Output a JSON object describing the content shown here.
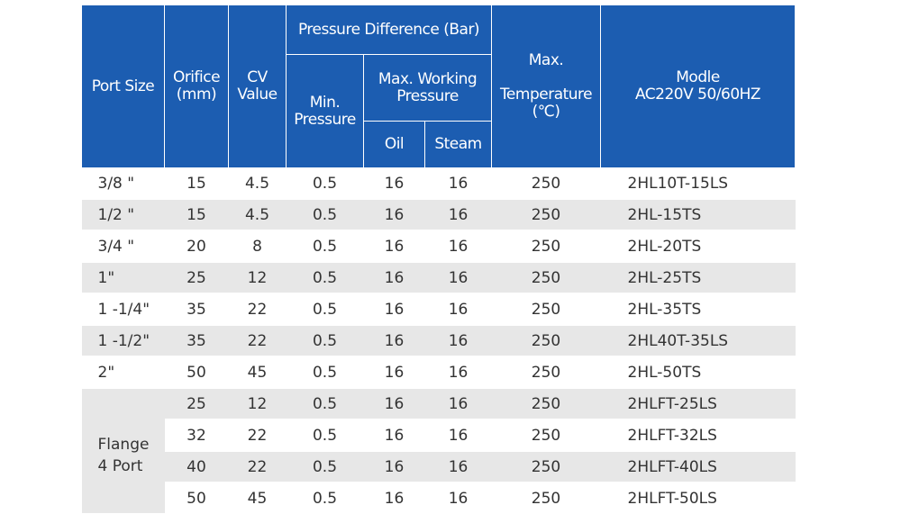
{
  "headers": {
    "port_size": "Port Size",
    "orifice_line1": "Orifice",
    "orifice_line2": "(mm)",
    "cv_line1": "CV",
    "cv_line2": "Value",
    "pressure_difference": "Pressure Difference (Bar)",
    "min_pressure_line1": "Min.",
    "min_pressure_line2": "Pressure",
    "max_working_line1": "Max. Working",
    "max_working_line2": "Pressure",
    "oil": "Oil",
    "steam": "Steam",
    "max_temp_line1": "Max.",
    "max_temp_line2": "Temperature",
    "max_temp_line3": "(℃)",
    "modle_line1": "Modle",
    "modle_line2": "AC220V   50/60HZ"
  },
  "rows": [
    {
      "port": "3/8 \"",
      "orifice": "15",
      "cv": "4.5",
      "min": "0.5",
      "oil": "16",
      "steam": "16",
      "temp": "250",
      "model": "2HL10T-15LS"
    },
    {
      "port": "1/2 \"",
      "orifice": "15",
      "cv": "4.5",
      "min": "0.5",
      "oil": "16",
      "steam": "16",
      "temp": "250",
      "model": "2HL-15TS"
    },
    {
      "port": "3/4 \"",
      "orifice": "20",
      "cv": "8",
      "min": "0.5",
      "oil": "16",
      "steam": "16",
      "temp": "250",
      "model": "2HL-20TS"
    },
    {
      "port": "1\"",
      "orifice": "25",
      "cv": "12",
      "min": "0.5",
      "oil": "16",
      "steam": "16",
      "temp": "250",
      "model": "2HL-25TS"
    },
    {
      "port": "1 -1/4\"",
      "orifice": "35",
      "cv": "22",
      "min": "0.5",
      "oil": "16",
      "steam": "16",
      "temp": "250",
      "model": "2HL-35TS"
    },
    {
      "port": "1 -1/2\"",
      "orifice": "35",
      "cv": "22",
      "min": "0.5",
      "oil": "16",
      "steam": "16",
      "temp": "250",
      "model": "2HL40T-35LS"
    },
    {
      "port": "2\"",
      "orifice": "50",
      "cv": "45",
      "min": "0.5",
      "oil": "16",
      "steam": "16",
      "temp": "250",
      "model": "2HL-50TS"
    },
    {
      "orifice": "25",
      "cv": "12",
      "min": "0.5",
      "oil": "16",
      "steam": "16",
      "temp": "250",
      "model": "2HLFT-25LS"
    },
    {
      "orifice": "32",
      "cv": "22",
      "min": "0.5",
      "oil": "16",
      "steam": "16",
      "temp": "250",
      "model": "2HLFT-32LS"
    },
    {
      "orifice": "40",
      "cv": "22",
      "min": "0.5",
      "oil": "16",
      "steam": "16",
      "temp": "250",
      "model": "2HLFT-40LS"
    },
    {
      "orifice": "50",
      "cv": "45",
      "min": "0.5",
      "oil": "16",
      "steam": "16",
      "temp": "250",
      "model": "2HLFT-50LS"
    }
  ],
  "flange_group": {
    "line1": "Flange",
    "line2": "4 Port"
  }
}
